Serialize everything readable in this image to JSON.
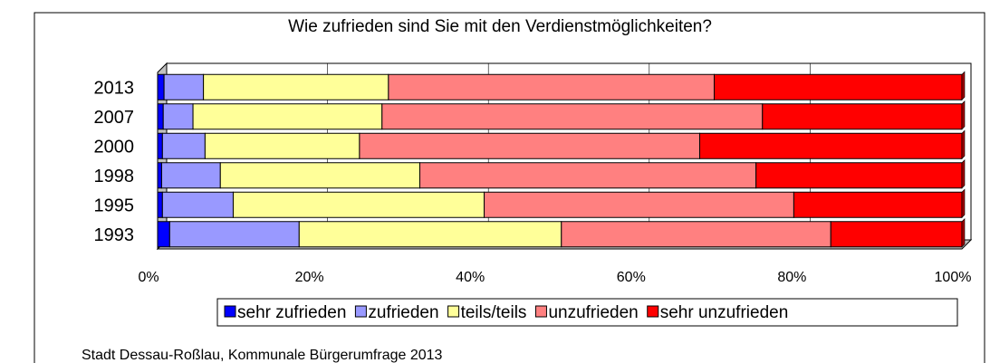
{
  "chart_data": {
    "type": "stacked_bar_horizontal",
    "title": "Wie zufrieden sind Sie mit den Verdienstmöglichkeiten?",
    "categories": [
      "2013",
      "2007",
      "2000",
      "1998",
      "1995",
      "1993"
    ],
    "series": [
      {
        "name": "sehr zufrieden",
        "color": "#0000ff",
        "values": [
          0.8,
          0.7,
          0.6,
          0.5,
          0.6,
          1.5
        ]
      },
      {
        "name": "zufrieden",
        "color": "#9999ff",
        "values": [
          4.9,
          3.7,
          5.3,
          7.3,
          8.8,
          16.1
        ]
      },
      {
        "name": "teils/teils",
        "color": "#ffff99",
        "values": [
          23,
          23.5,
          19.2,
          24.8,
          31.2,
          32.6
        ]
      },
      {
        "name": "unzufrieden",
        "color": "#ff8080",
        "values": [
          40.5,
          47.3,
          42.3,
          41.8,
          38.5,
          33.5
        ]
      },
      {
        "name": "sehr unzufrieden",
        "color": "#ff0000",
        "values": [
          30.8,
          24.8,
          32.6,
          25.6,
          20.9,
          16.3
        ]
      }
    ],
    "xlim": [
      0,
      100
    ],
    "xticks": [
      {
        "value": 0,
        "label": "0%"
      },
      {
        "value": 20,
        "label": "20%"
      },
      {
        "value": 40,
        "label": "40%"
      },
      {
        "value": 60,
        "label": "60%"
      },
      {
        "value": 80,
        "label": "80%"
      },
      {
        "value": 100,
        "label": "100%"
      }
    ],
    "grid": true,
    "source": "Stadt Dessau-Roßlau, Kommunale Bürgerumfrage 2013"
  }
}
